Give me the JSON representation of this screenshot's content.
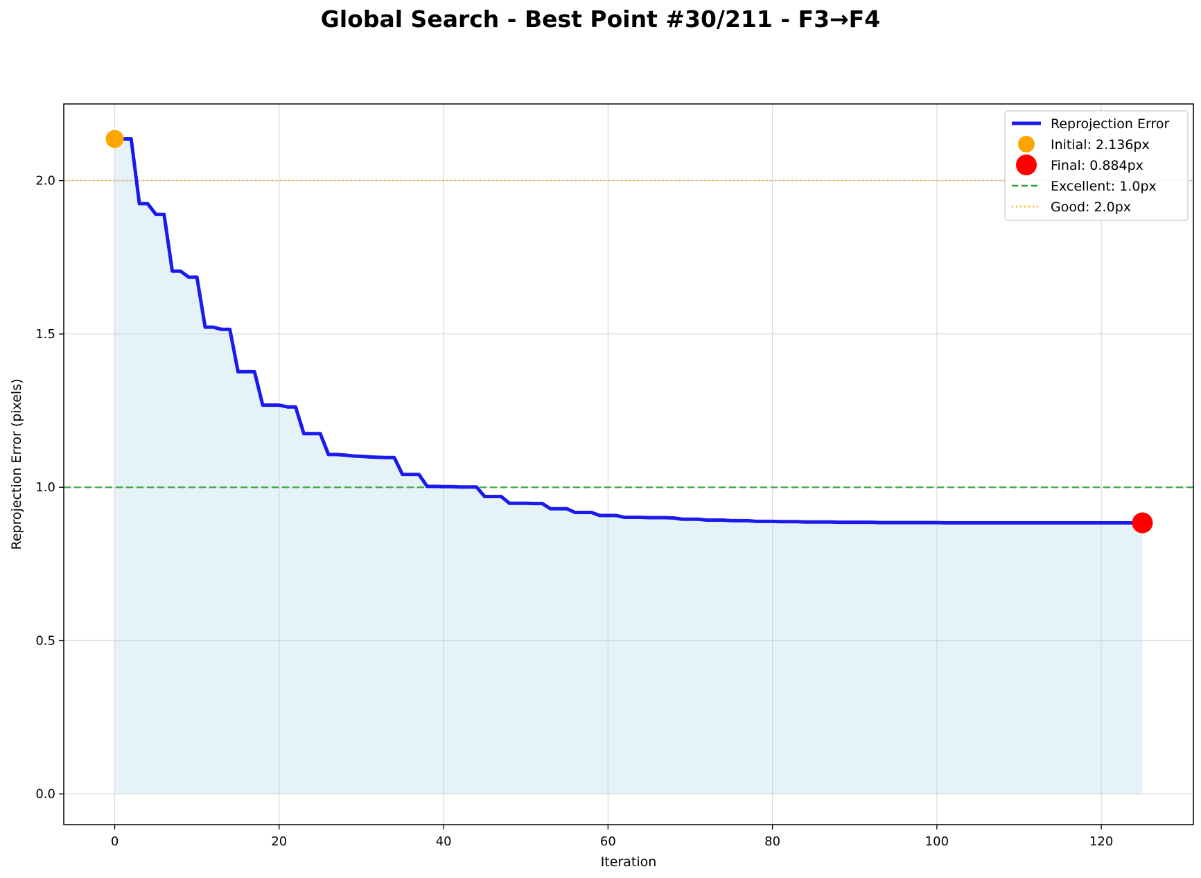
{
  "chart_data": {
    "type": "line",
    "title": "Global Search - Best Point #30/211 - F3→F4",
    "xlabel": "Iteration",
    "ylabel": "Reprojection Error (pixels)",
    "xlim": [
      -6.2,
      131.2
    ],
    "ylim": [
      -0.1,
      2.25
    ],
    "x_ticks": [
      0,
      20,
      40,
      60,
      80,
      100,
      120
    ],
    "y_ticks": [
      0.0,
      0.5,
      1.0,
      1.5,
      2.0
    ],
    "x_tick_labels": [
      "0",
      "20",
      "40",
      "60",
      "80",
      "100",
      "120"
    ],
    "y_tick_labels": [
      "0.0",
      "0.5",
      "1.0",
      "1.5",
      "2.0"
    ],
    "grid": true,
    "legend_position": "top-right",
    "series": [
      {
        "name": "Reprojection Error",
        "color": "#1a1aee",
        "fill_color": "#add8e6",
        "x": [
          0,
          1,
          2,
          3,
          4,
          5,
          6,
          7,
          8,
          9,
          10,
          11,
          12,
          13,
          14,
          15,
          16,
          17,
          18,
          19,
          20,
          21,
          22,
          23,
          24,
          25,
          26,
          27,
          28,
          29,
          30,
          31,
          32,
          33,
          34,
          35,
          36,
          37,
          38,
          39,
          40,
          41,
          42,
          43,
          44,
          45,
          46,
          47,
          48,
          49,
          50,
          51,
          52,
          53,
          54,
          55,
          56,
          57,
          58,
          59,
          60,
          61,
          62,
          63,
          64,
          65,
          66,
          67,
          68,
          69,
          70,
          71,
          72,
          73,
          74,
          75,
          76,
          77,
          78,
          79,
          80,
          81,
          82,
          83,
          84,
          85,
          86,
          87,
          88,
          89,
          90,
          91,
          92,
          93,
          94,
          95,
          96,
          97,
          98,
          99,
          100,
          101,
          102,
          103,
          104,
          105,
          106,
          107,
          108,
          109,
          110,
          111,
          112,
          113,
          114,
          115,
          116,
          117,
          118,
          119,
          120,
          121,
          122,
          123,
          124,
          125
        ],
        "y": [
          2.136,
          2.136,
          2.136,
          1.925,
          1.925,
          1.89,
          1.89,
          1.705,
          1.705,
          1.685,
          1.685,
          1.522,
          1.522,
          1.515,
          1.515,
          1.377,
          1.377,
          1.377,
          1.268,
          1.268,
          1.268,
          1.262,
          1.262,
          1.175,
          1.175,
          1.175,
          1.107,
          1.107,
          1.105,
          1.102,
          1.101,
          1.099,
          1.098,
          1.097,
          1.097,
          1.042,
          1.042,
          1.042,
          1.003,
          1.003,
          1.002,
          1.002,
          1.001,
          1.001,
          1.001,
          0.97,
          0.97,
          0.97,
          0.948,
          0.948,
          0.948,
          0.947,
          0.947,
          0.93,
          0.93,
          0.93,
          0.918,
          0.918,
          0.918,
          0.908,
          0.908,
          0.908,
          0.902,
          0.902,
          0.902,
          0.901,
          0.901,
          0.901,
          0.9,
          0.896,
          0.896,
          0.896,
          0.893,
          0.893,
          0.893,
          0.891,
          0.891,
          0.891,
          0.889,
          0.889,
          0.889,
          0.888,
          0.888,
          0.888,
          0.887,
          0.887,
          0.887,
          0.887,
          0.886,
          0.886,
          0.886,
          0.886,
          0.886,
          0.885,
          0.885,
          0.885,
          0.885,
          0.885,
          0.885,
          0.885,
          0.885,
          0.884,
          0.884,
          0.884,
          0.884,
          0.884,
          0.884,
          0.884,
          0.884,
          0.884,
          0.884,
          0.884,
          0.884,
          0.884,
          0.884,
          0.884,
          0.884,
          0.884,
          0.884,
          0.884,
          0.884,
          0.884,
          0.884,
          0.884,
          0.884,
          0.884
        ]
      }
    ],
    "markers": [
      {
        "name": "Initial: 2.136px",
        "x": 0,
        "y": 2.136,
        "color": "#ffa500"
      },
      {
        "name": "Final: 0.884px",
        "x": 125,
        "y": 0.884,
        "color": "#ff0000"
      }
    ],
    "reference_lines": [
      {
        "name": "Excellent: 1.0px",
        "y": 1.0,
        "color": "#2ca02c",
        "style": "dashed"
      },
      {
        "name": "Good: 2.0px",
        "y": 2.0,
        "color": "#ffa500",
        "style": "dotted"
      }
    ]
  }
}
